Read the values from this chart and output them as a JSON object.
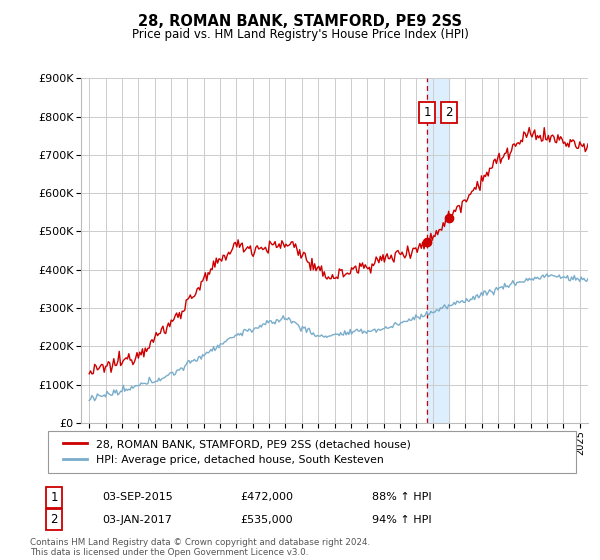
{
  "title": "28, ROMAN BANK, STAMFORD, PE9 2SS",
  "subtitle": "Price paid vs. HM Land Registry's House Price Index (HPI)",
  "red_line_label": "28, ROMAN BANK, STAMFORD, PE9 2SS (detached house)",
  "blue_line_label": "HPI: Average price, detached house, South Kesteven",
  "annotation1_date": "03-SEP-2015",
  "annotation1_price": "£472,000",
  "annotation1_pct": "88% ↑ HPI",
  "annotation2_date": "03-JAN-2017",
  "annotation2_price": "£535,000",
  "annotation2_pct": "94% ↑ HPI",
  "footer": "Contains HM Land Registry data © Crown copyright and database right 2024.\nThis data is licensed under the Open Government Licence v3.0.",
  "ylim": [
    0,
    900000
  ],
  "red_color": "#cc0000",
  "blue_color": "#7aadcb",
  "shade_color": "#ddeeff",
  "marker1_x": 2015.67,
  "marker1_y": 472000,
  "marker2_x": 2017.0,
  "marker2_y": 535000,
  "shade_x1": 2015.67,
  "shade_x2": 2017.0,
  "xmin": 1994.5,
  "xmax": 2025.5
}
